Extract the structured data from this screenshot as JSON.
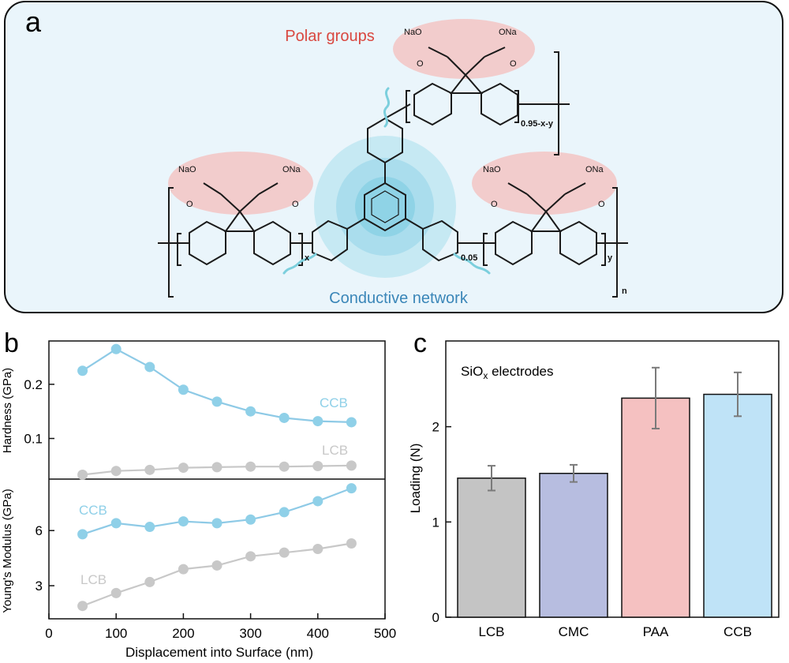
{
  "panel_a": {
    "label": "a",
    "polar_groups_label": "Polar groups",
    "conductive_network_label": "Conductive network",
    "subscripts": {
      "top_unit": "0.95-x-y",
      "left_unit": "x",
      "core_unit": "0.05",
      "right_unit": "y",
      "chain": "n"
    },
    "functional_groups": {
      "ester_o": "O",
      "salt_left": "NaO",
      "salt_right": "ONa"
    },
    "colors": {
      "polar_highlight": "#f2cccc",
      "network_glow": "#9fd8e8",
      "network_wave": "#7ccfdd",
      "polar_text": "#d9473f",
      "network_text": "#3a86b8"
    }
  },
  "panel_b": {
    "label": "b"
  },
  "panel_c": {
    "label": "c"
  },
  "chart_data": [
    {
      "id": "hardness",
      "type": "line",
      "ylabel": "Hardness (GPa)",
      "ylim": [
        0.025,
        0.28
      ],
      "yticks": [
        0.1,
        0.2
      ],
      "ytick_labels": [
        "0.1",
        "0.2"
      ],
      "x": [
        50,
        100,
        150,
        200,
        250,
        300,
        350,
        400,
        450
      ],
      "series": [
        {
          "name": "CCB",
          "color": "#8fd0e8",
          "line_color": "#8ecae6",
          "values": [
            0.225,
            0.265,
            0.232,
            0.19,
            0.168,
            0.15,
            0.138,
            0.132,
            0.13
          ]
        },
        {
          "name": "LCB",
          "color": "#c8c8c8",
          "line_color": "#c8c8c8",
          "values": [
            0.033,
            0.04,
            0.042,
            0.046,
            0.047,
            0.048,
            0.048,
            0.049,
            0.05
          ]
        }
      ]
    },
    {
      "id": "youngs_modulus",
      "type": "line",
      "ylabel": "Young's Modulus (GPa)",
      "xlabel": "Displacement into Surface (nm)",
      "xlim": [
        0,
        500
      ],
      "xticks": [
        0,
        100,
        200,
        300,
        400,
        500
      ],
      "xtick_labels": [
        "0",
        "100",
        "200",
        "300",
        "400",
        "500"
      ],
      "ylim": [
        1.2,
        8.8
      ],
      "yticks": [
        3,
        6
      ],
      "ytick_labels": [
        "3",
        "6"
      ],
      "x": [
        50,
        100,
        150,
        200,
        250,
        300,
        350,
        400,
        450
      ],
      "series": [
        {
          "name": "CCB",
          "color": "#8fd0e8",
          "line_color": "#8ecae6",
          "values": [
            5.8,
            6.4,
            6.2,
            6.5,
            6.4,
            6.6,
            7.0,
            7.6,
            8.3
          ]
        },
        {
          "name": "LCB",
          "color": "#c8c8c8",
          "line_color": "#c8c8c8",
          "values": [
            1.9,
            2.6,
            3.2,
            3.9,
            4.1,
            4.6,
            4.8,
            5.0,
            5.3
          ]
        }
      ]
    },
    {
      "id": "loading",
      "type": "bar",
      "title": "SiOx electrodes",
      "title_main": "SiO",
      "title_sub": "x",
      "title_rest": " electrodes",
      "ylabel": "Loading (N)",
      "ylim": [
        0,
        2.9
      ],
      "yticks": [
        0,
        1,
        2
      ],
      "ytick_labels": [
        "0",
        "1",
        "2"
      ],
      "categories": [
        "LCB",
        "CMC",
        "PAA",
        "CCB"
      ],
      "values": [
        1.46,
        1.51,
        2.3,
        2.34
      ],
      "errors": [
        0.13,
        0.09,
        0.32,
        0.23
      ],
      "colors": [
        "#c4c4c4",
        "#b7bde0",
        "#f5c1c1",
        "#bfe3f7"
      ]
    }
  ]
}
